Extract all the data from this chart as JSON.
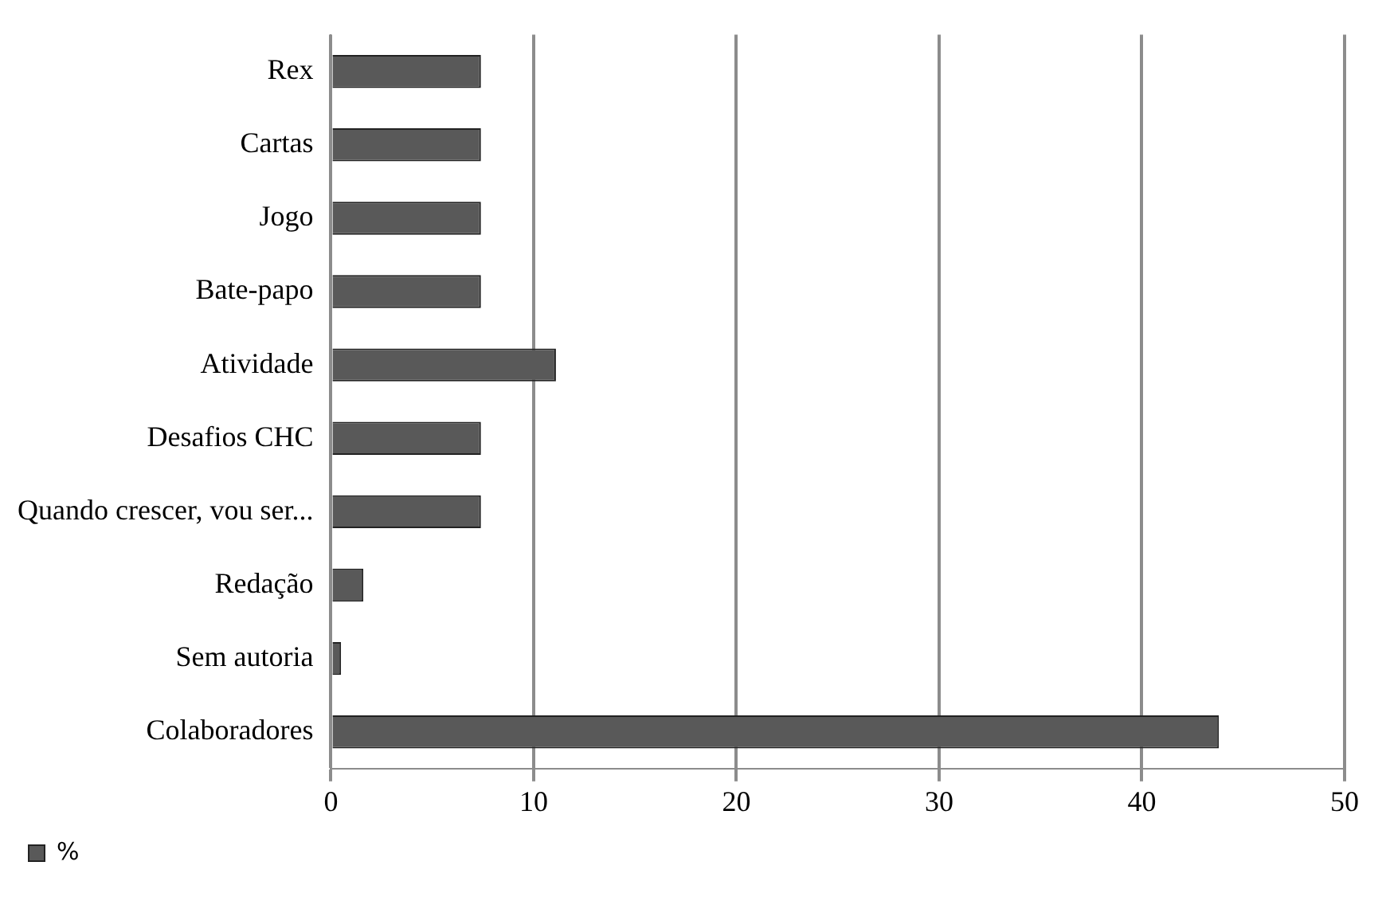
{
  "chart_data": {
    "type": "bar",
    "orientation": "horizontal",
    "categories": [
      "Rex",
      "Cartas",
      "Jogo",
      "Bate-papo",
      "Atividade",
      "Desafios CHC",
      "Quando crescer, vou ser...",
      "Redação",
      "Sem autoria",
      "Colaboradores"
    ],
    "series": [
      {
        "name": "%",
        "color": "#595959",
        "values": [
          7.4,
          7.4,
          7.4,
          7.4,
          11.1,
          7.4,
          7.4,
          1.6,
          0.5,
          43.8
        ]
      }
    ],
    "xlim": [
      0,
      50
    ],
    "xticks": [
      0,
      10,
      20,
      30,
      40,
      50
    ],
    "grid": "x",
    "legend": "bottom left"
  }
}
